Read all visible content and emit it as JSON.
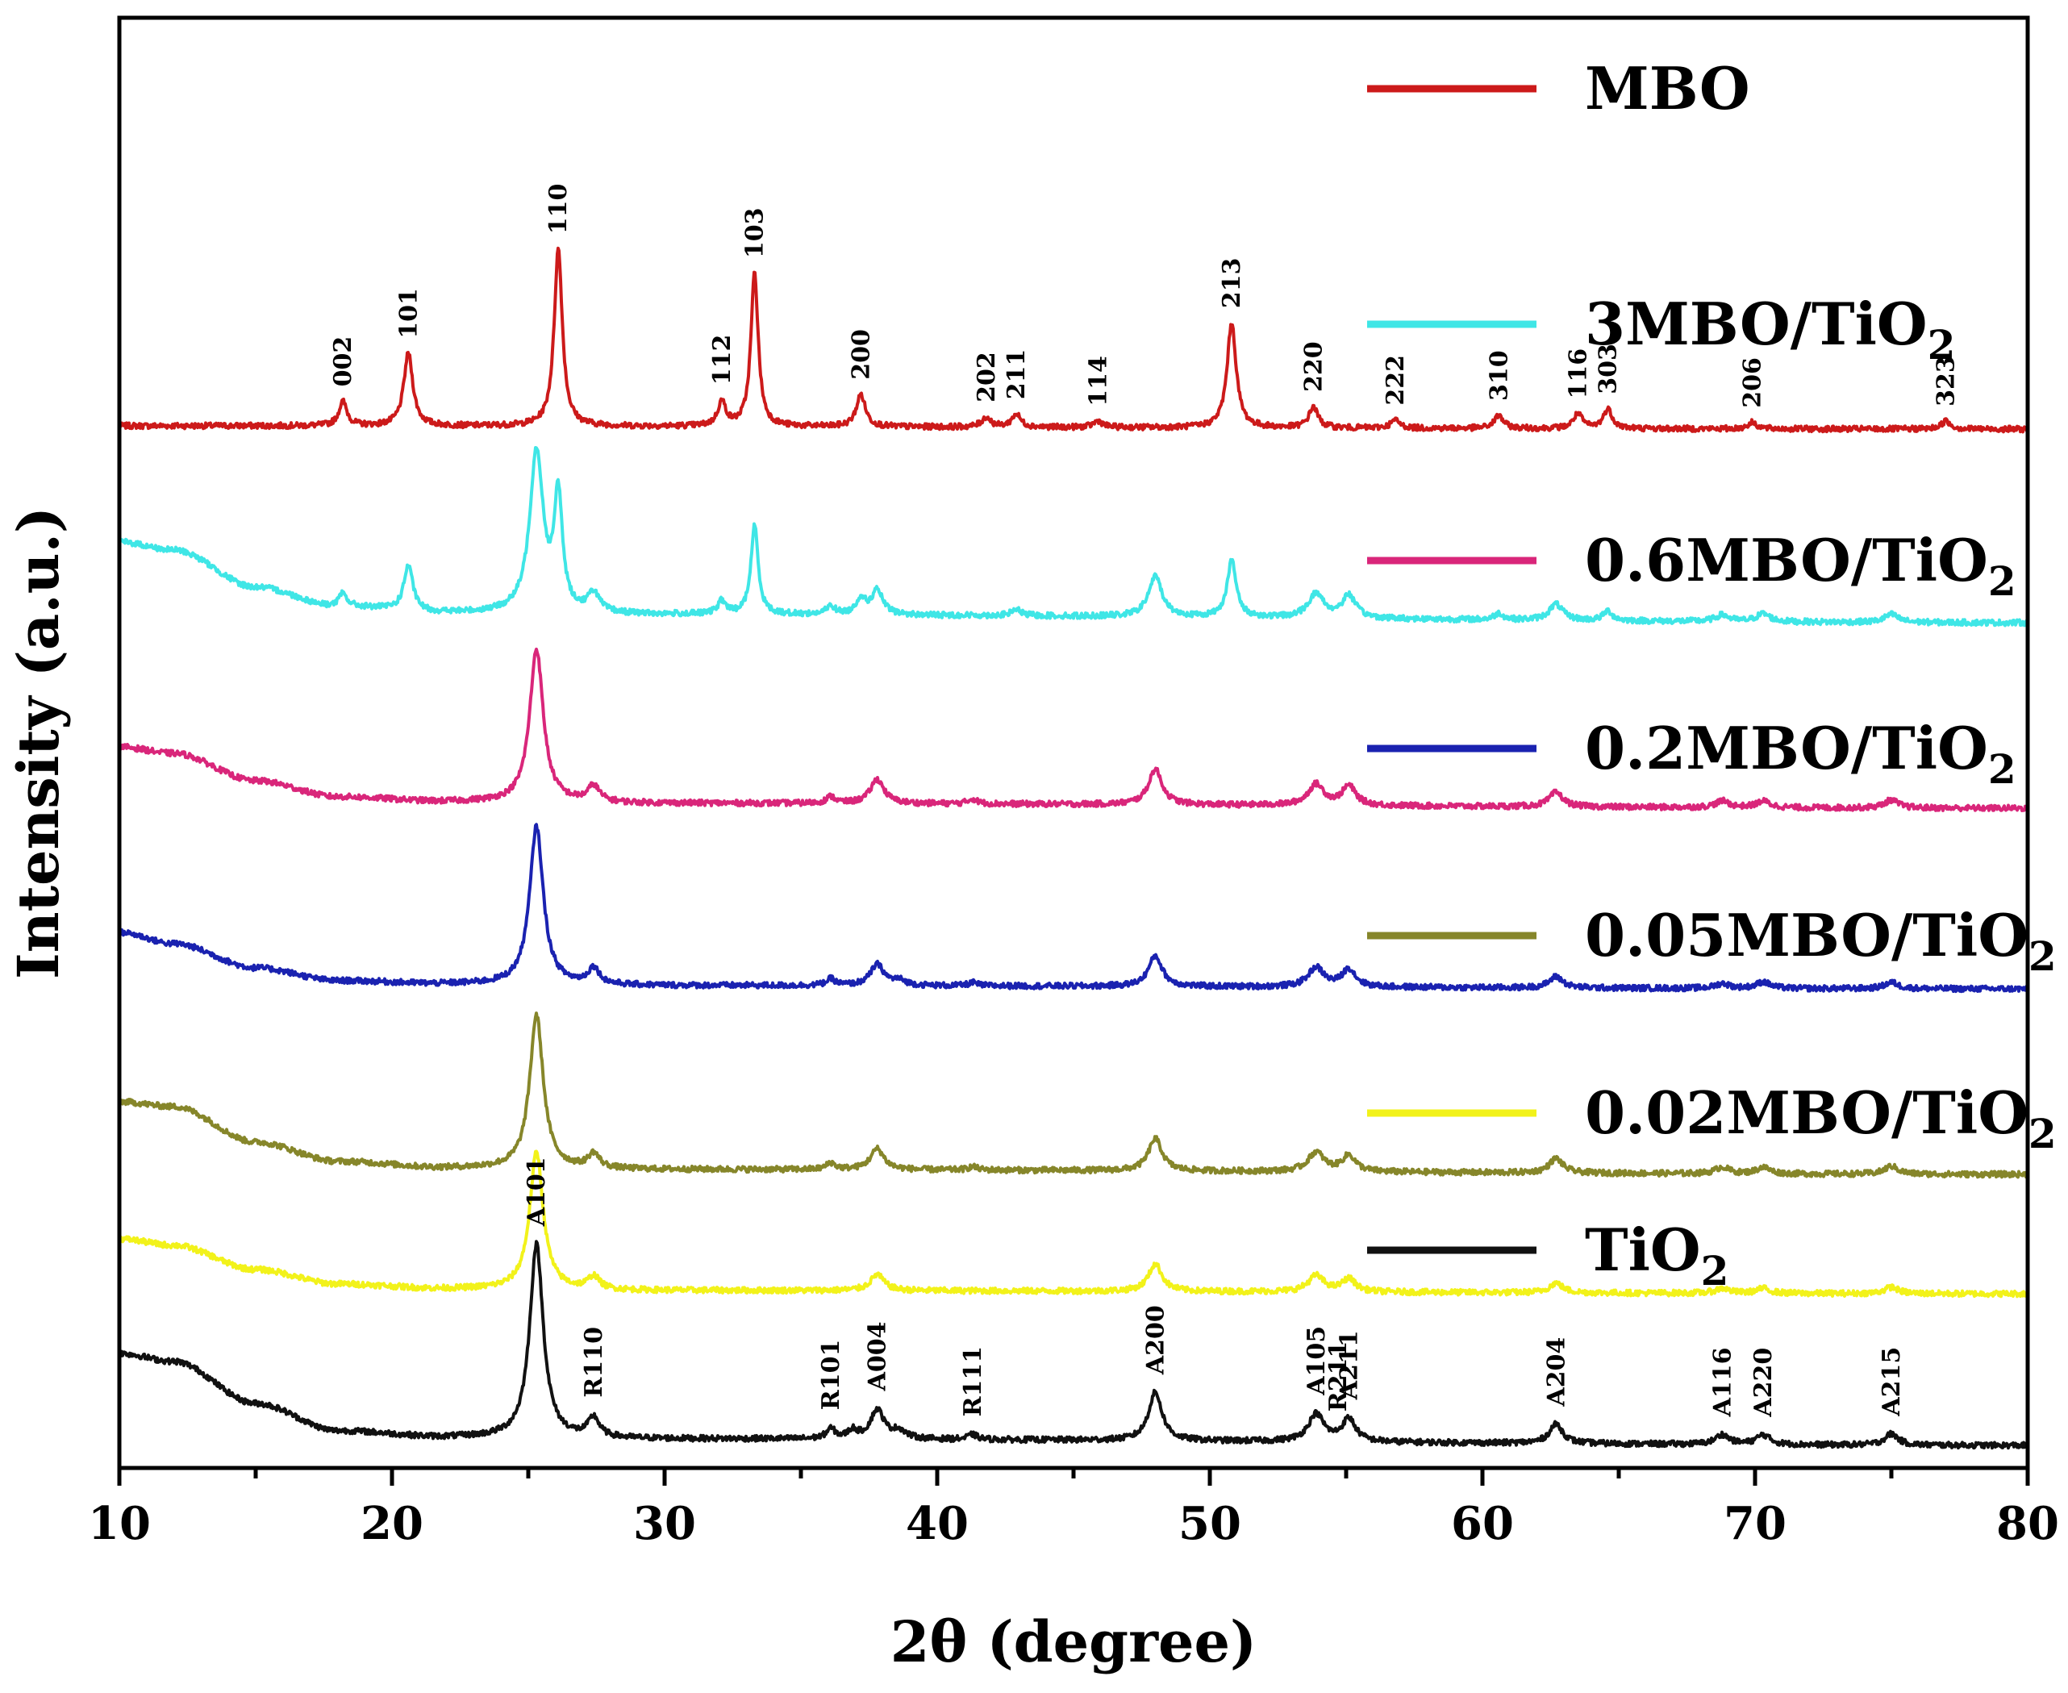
{
  "chart_data": {
    "type": "line",
    "xlabel": "2θ (degree)",
    "ylabel": "Intensity (a.u.)",
    "xlim": [
      10,
      80
    ],
    "xticks": [
      10,
      20,
      30,
      40,
      50,
      60,
      70,
      80
    ],
    "yticks": [],
    "grid": false,
    "legend_position": "right, inline beside each trace",
    "series": [
      {
        "name": "MBO",
        "display_name": "MBO",
        "color": "#cc1a1a",
        "offset": 6.3,
        "baseline": 0.0,
        "background": [
          [
            10,
            0.02
          ],
          [
            80,
            0.0
          ]
        ],
        "peaks": [
          {
            "x": 18.2,
            "h": 0.15,
            "w": 0.18
          },
          {
            "x": 20.6,
            "h": 0.45,
            "w": 0.2
          },
          {
            "x": 26.1,
            "h": 1.1,
            "w": 0.18
          },
          {
            "x": 32.1,
            "h": 0.15,
            "w": 0.18
          },
          {
            "x": 33.3,
            "h": 0.95,
            "w": 0.16
          },
          {
            "x": 37.2,
            "h": 0.2,
            "w": 0.2
          },
          {
            "x": 41.8,
            "h": 0.06,
            "w": 0.2
          },
          {
            "x": 42.9,
            "h": 0.08,
            "w": 0.2
          },
          {
            "x": 45.9,
            "h": 0.04,
            "w": 0.2
          },
          {
            "x": 50.8,
            "h": 0.65,
            "w": 0.2
          },
          {
            "x": 53.8,
            "h": 0.13,
            "w": 0.2
          },
          {
            "x": 56.8,
            "h": 0.05,
            "w": 0.2
          },
          {
            "x": 60.6,
            "h": 0.08,
            "w": 0.2
          },
          {
            "x": 63.5,
            "h": 0.09,
            "w": 0.2
          },
          {
            "x": 64.6,
            "h": 0.12,
            "w": 0.2
          },
          {
            "x": 69.9,
            "h": 0.04,
            "w": 0.2
          },
          {
            "x": 77.0,
            "h": 0.05,
            "w": 0.2
          }
        ]
      },
      {
        "name": "3MBO/TiO2",
        "display_name": "3MBO/TiO",
        "subscript": "2",
        "color": "#3fe6e6",
        "offset": 5.1,
        "baseline": 0.0,
        "background": [
          [
            10,
            0.5
          ],
          [
            12,
            0.45
          ],
          [
            15,
            0.22
          ],
          [
            18,
            0.1
          ],
          [
            22,
            0.06
          ],
          [
            30,
            0.05
          ],
          [
            80,
            0.0
          ]
        ],
        "peaks": [
          {
            "x": 18.2,
            "h": 0.08,
            "w": 0.18
          },
          {
            "x": 20.6,
            "h": 0.28,
            "w": 0.2
          },
          {
            "x": 25.3,
            "h": 1.0,
            "w": 0.3
          },
          {
            "x": 26.1,
            "h": 0.7,
            "w": 0.18
          },
          {
            "x": 27.4,
            "h": 0.12,
            "w": 0.25
          },
          {
            "x": 32.1,
            "h": 0.08,
            "w": 0.18
          },
          {
            "x": 33.3,
            "h": 0.55,
            "w": 0.16
          },
          {
            "x": 36.1,
            "h": 0.05,
            "w": 0.2
          },
          {
            "x": 37.2,
            "h": 0.1,
            "w": 0.2
          },
          {
            "x": 37.8,
            "h": 0.15,
            "w": 0.25
          },
          {
            "x": 42.9,
            "h": 0.04,
            "w": 0.2
          },
          {
            "x": 48.0,
            "h": 0.25,
            "w": 0.3
          },
          {
            "x": 50.8,
            "h": 0.35,
            "w": 0.2
          },
          {
            "x": 53.9,
            "h": 0.15,
            "w": 0.35
          },
          {
            "x": 55.1,
            "h": 0.14,
            "w": 0.3
          },
          {
            "x": 60.6,
            "h": 0.04,
            "w": 0.2
          },
          {
            "x": 62.7,
            "h": 0.1,
            "w": 0.3
          },
          {
            "x": 64.6,
            "h": 0.06,
            "w": 0.2
          },
          {
            "x": 68.8,
            "h": 0.04,
            "w": 0.3
          },
          {
            "x": 70.3,
            "h": 0.05,
            "w": 0.3
          },
          {
            "x": 75.0,
            "h": 0.05,
            "w": 0.3
          }
        ]
      },
      {
        "name": "0.6MBO/TiO2",
        "display_name": "0.6MBO/TiO",
        "subscript": "2",
        "color": "#d9267a",
        "offset": 3.95,
        "baseline": 0.0,
        "background": [
          [
            10,
            0.38
          ],
          [
            12,
            0.34
          ],
          [
            15,
            0.17
          ],
          [
            18,
            0.07
          ],
          [
            22,
            0.04
          ],
          [
            30,
            0.03
          ],
          [
            80,
            0.0
          ]
        ],
        "peaks": [
          {
            "x": 25.3,
            "h": 0.95,
            "w": 0.3
          },
          {
            "x": 27.4,
            "h": 0.1,
            "w": 0.25
          },
          {
            "x": 36.1,
            "h": 0.04,
            "w": 0.2
          },
          {
            "x": 37.8,
            "h": 0.15,
            "w": 0.3
          },
          {
            "x": 41.3,
            "h": 0.03,
            "w": 0.2
          },
          {
            "x": 48.0,
            "h": 0.22,
            "w": 0.3
          },
          {
            "x": 53.9,
            "h": 0.13,
            "w": 0.35
          },
          {
            "x": 55.1,
            "h": 0.12,
            "w": 0.3
          },
          {
            "x": 62.7,
            "h": 0.09,
            "w": 0.3
          },
          {
            "x": 68.8,
            "h": 0.04,
            "w": 0.3
          },
          {
            "x": 70.3,
            "h": 0.04,
            "w": 0.3
          },
          {
            "x": 75.0,
            "h": 0.05,
            "w": 0.3
          }
        ]
      },
      {
        "name": "0.2MBO/TiO2",
        "display_name": "0.2MBO/TiO",
        "subscript": "2",
        "color": "#1a22b0",
        "offset": 2.83,
        "baseline": 0.0,
        "background": [
          [
            10,
            0.35
          ],
          [
            12,
            0.28
          ],
          [
            15,
            0.13
          ],
          [
            18,
            0.05
          ],
          [
            22,
            0.03
          ],
          [
            30,
            0.02
          ],
          [
            80,
            0.0
          ]
        ],
        "peaks": [
          {
            "x": 25.3,
            "h": 0.98,
            "w": 0.3
          },
          {
            "x": 27.4,
            "h": 0.1,
            "w": 0.25
          },
          {
            "x": 36.1,
            "h": 0.04,
            "w": 0.2
          },
          {
            "x": 37.8,
            "h": 0.13,
            "w": 0.3
          },
          {
            "x": 38.6,
            "h": 0.03,
            "w": 0.3
          },
          {
            "x": 41.3,
            "h": 0.02,
            "w": 0.2
          },
          {
            "x": 48.0,
            "h": 0.19,
            "w": 0.3
          },
          {
            "x": 53.9,
            "h": 0.12,
            "w": 0.35
          },
          {
            "x": 55.1,
            "h": 0.11,
            "w": 0.3
          },
          {
            "x": 62.7,
            "h": 0.07,
            "w": 0.3
          },
          {
            "x": 68.8,
            "h": 0.03,
            "w": 0.3
          },
          {
            "x": 70.3,
            "h": 0.04,
            "w": 0.3
          },
          {
            "x": 75.0,
            "h": 0.04,
            "w": 0.3
          }
        ]
      },
      {
        "name": "0.05MBO/TiO2",
        "display_name": "0.05MBO/TiO",
        "subscript": "2",
        "color": "#86862a",
        "offset": 1.68,
        "baseline": 0.0,
        "background": [
          [
            10,
            0.45
          ],
          [
            12,
            0.42
          ],
          [
            15,
            0.2
          ],
          [
            18,
            0.08
          ],
          [
            22,
            0.04
          ],
          [
            30,
            0.03
          ],
          [
            80,
            0.0
          ]
        ],
        "peaks": [
          {
            "x": 25.3,
            "h": 0.95,
            "w": 0.3
          },
          {
            "x": 27.4,
            "h": 0.09,
            "w": 0.25
          },
          {
            "x": 36.1,
            "h": 0.04,
            "w": 0.2
          },
          {
            "x": 37.8,
            "h": 0.13,
            "w": 0.3
          },
          {
            "x": 41.3,
            "h": 0.02,
            "w": 0.2
          },
          {
            "x": 48.0,
            "h": 0.2,
            "w": 0.3
          },
          {
            "x": 53.9,
            "h": 0.12,
            "w": 0.35
          },
          {
            "x": 55.1,
            "h": 0.1,
            "w": 0.3
          },
          {
            "x": 62.7,
            "h": 0.09,
            "w": 0.3
          },
          {
            "x": 68.8,
            "h": 0.04,
            "w": 0.3
          },
          {
            "x": 70.3,
            "h": 0.04,
            "w": 0.3
          },
          {
            "x": 75.0,
            "h": 0.05,
            "w": 0.3
          }
        ]
      },
      {
        "name": "0.02MBO/TiO2",
        "display_name": "0.02MBO/TiO",
        "subscript": "2",
        "color": "#f2f21a",
        "offset": 0.94,
        "baseline": 0.0,
        "background": [
          [
            10,
            0.34
          ],
          [
            12,
            0.3
          ],
          [
            15,
            0.15
          ],
          [
            18,
            0.06
          ],
          [
            22,
            0.03
          ],
          [
            30,
            0.02
          ],
          [
            80,
            0.0
          ]
        ],
        "peaks": [
          {
            "x": 25.3,
            "h": 0.85,
            "w": 0.3
          },
          {
            "x": 27.4,
            "h": 0.08,
            "w": 0.25
          },
          {
            "x": 37.8,
            "h": 0.1,
            "w": 0.3
          },
          {
            "x": 48.0,
            "h": 0.17,
            "w": 0.3
          },
          {
            "x": 53.9,
            "h": 0.1,
            "w": 0.35
          },
          {
            "x": 55.1,
            "h": 0.08,
            "w": 0.3
          },
          {
            "x": 62.7,
            "h": 0.06,
            "w": 0.3
          },
          {
            "x": 68.8,
            "h": 0.03,
            "w": 0.3
          },
          {
            "x": 70.3,
            "h": 0.03,
            "w": 0.3
          },
          {
            "x": 75.0,
            "h": 0.04,
            "w": 0.3
          }
        ]
      },
      {
        "name": "TiO2",
        "display_name": "TiO",
        "subscript": "2",
        "color": "#111111",
        "offset": 0.0,
        "baseline": 0.0,
        "background": [
          [
            10,
            0.57
          ],
          [
            12,
            0.52
          ],
          [
            15,
            0.26
          ],
          [
            18,
            0.09
          ],
          [
            22,
            0.05
          ],
          [
            30,
            0.04
          ],
          [
            80,
            0.0
          ]
        ],
        "peaks": [
          {
            "x": 25.3,
            "h": 1.2,
            "w": 0.3
          },
          {
            "x": 27.4,
            "h": 0.12,
            "w": 0.25
          },
          {
            "x": 36.1,
            "h": 0.06,
            "w": 0.2
          },
          {
            "x": 36.9,
            "h": 0.05,
            "w": 0.2
          },
          {
            "x": 37.8,
            "h": 0.18,
            "w": 0.3
          },
          {
            "x": 38.6,
            "h": 0.05,
            "w": 0.3
          },
          {
            "x": 41.3,
            "h": 0.03,
            "w": 0.2
          },
          {
            "x": 48.0,
            "h": 0.3,
            "w": 0.3
          },
          {
            "x": 53.9,
            "h": 0.17,
            "w": 0.35
          },
          {
            "x": 55.1,
            "h": 0.14,
            "w": 0.3
          },
          {
            "x": 62.7,
            "h": 0.12,
            "w": 0.3
          },
          {
            "x": 68.8,
            "h": 0.06,
            "w": 0.3
          },
          {
            "x": 70.3,
            "h": 0.06,
            "w": 0.3
          },
          {
            "x": 75.0,
            "h": 0.07,
            "w": 0.3
          }
        ]
      }
    ],
    "annotations": {
      "MBO": [
        {
          "label": "002",
          "x": 18.2
        },
        {
          "label": "101",
          "x": 20.6
        },
        {
          "label": "110",
          "x": 26.1
        },
        {
          "label": "112",
          "x": 32.1
        },
        {
          "label": "103",
          "x": 33.3
        },
        {
          "label": "200",
          "x": 37.2
        },
        {
          "label": "202",
          "x": 41.8
        },
        {
          "label": "211",
          "x": 42.9
        },
        {
          "label": "114",
          "x": 45.9
        },
        {
          "label": "213",
          "x": 50.8
        },
        {
          "label": "220",
          "x": 53.8
        },
        {
          "label": "222",
          "x": 56.8
        },
        {
          "label": "310",
          "x": 60.6
        },
        {
          "label": "116",
          "x": 63.5
        },
        {
          "label": "303",
          "x": 64.6
        },
        {
          "label": "206",
          "x": 69.9
        },
        {
          "label": "323",
          "x": 77.0
        }
      ],
      "TiO2": [
        {
          "label": "A101",
          "x": 25.3
        },
        {
          "label": "R110",
          "x": 27.4
        },
        {
          "label": "R101",
          "x": 36.1
        },
        {
          "label": "A004",
          "x": 37.8
        },
        {
          "label": "R111",
          "x": 41.3
        },
        {
          "label": "A200",
          "x": 48.0
        },
        {
          "label": "A105",
          "x": 53.9
        },
        {
          "label": "R211",
          "x": 54.7
        },
        {
          "label": "A211",
          "x": 55.1
        },
        {
          "label": "A204",
          "x": 62.7
        },
        {
          "label": "A116",
          "x": 68.8
        },
        {
          "label": "A220",
          "x": 70.3
        },
        {
          "label": "A215",
          "x": 75.0
        }
      ]
    }
  }
}
